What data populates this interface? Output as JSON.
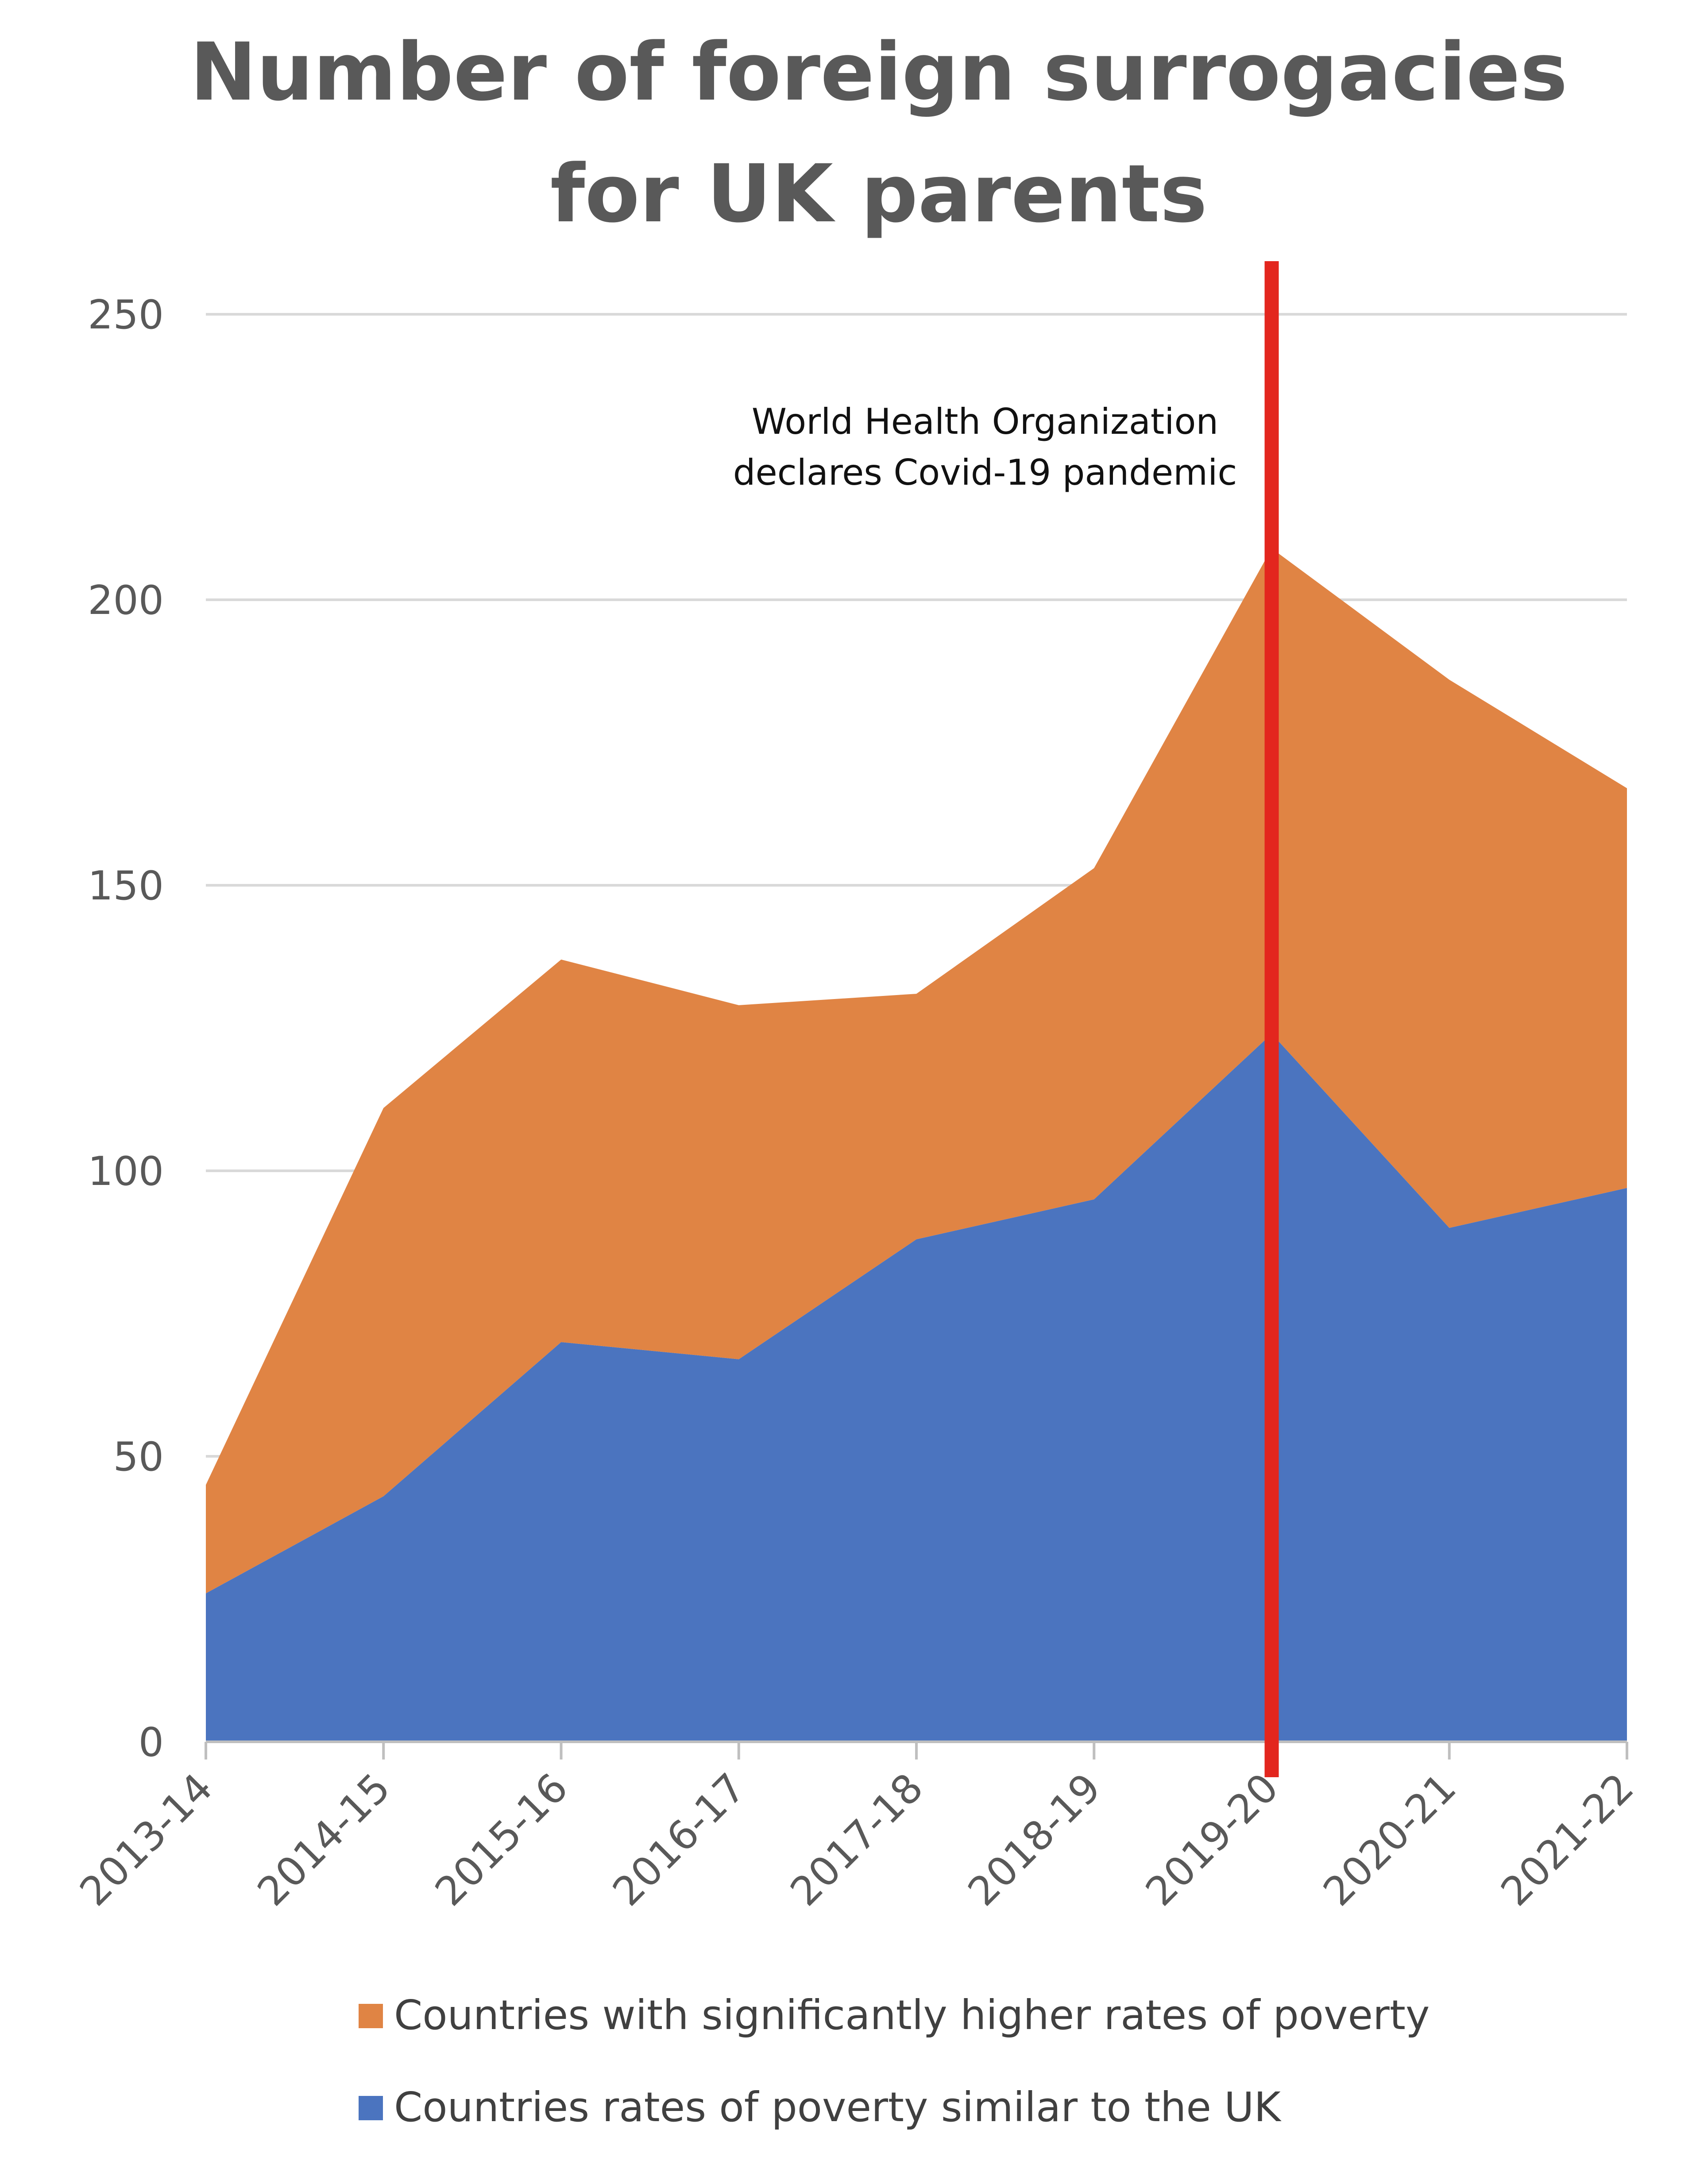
{
  "colors": {
    "higher_poverty": "#E08444",
    "similar_poverty": "#4B74BF",
    "event_line": "#E3261E",
    "grid": "#D9D9D9",
    "axis": "#BFBFBF"
  },
  "chart_data": {
    "type": "area",
    "stacked": true,
    "title_lines": [
      "Number of foreign surrogacies",
      "for UK parents"
    ],
    "categories": [
      "2013-14",
      "2014-15",
      "2015-16",
      "2016-17",
      "2017-18",
      "2018-19",
      "2019-20",
      "2020-21",
      "2021-22"
    ],
    "series": [
      {
        "name": "Countries rates of poverty similar to the UK",
        "values": [
          26,
          43,
          70,
          67,
          88,
          95,
          124,
          90,
          97
        ]
      },
      {
        "name": "Countries with significantly higher rates of poverty",
        "values": [
          19,
          68,
          67,
          62,
          43,
          58,
          85,
          96,
          70
        ]
      }
    ],
    "ylim": [
      0,
      250
    ],
    "yticks": [
      "0",
      "50",
      "100",
      "150",
      "200",
      "250"
    ],
    "grid": true,
    "legend_position": "bottom",
    "annotation": {
      "at_category": "2019-20",
      "lines": [
        "World Health Organization",
        "declares Covid-19 pandemic"
      ]
    }
  }
}
